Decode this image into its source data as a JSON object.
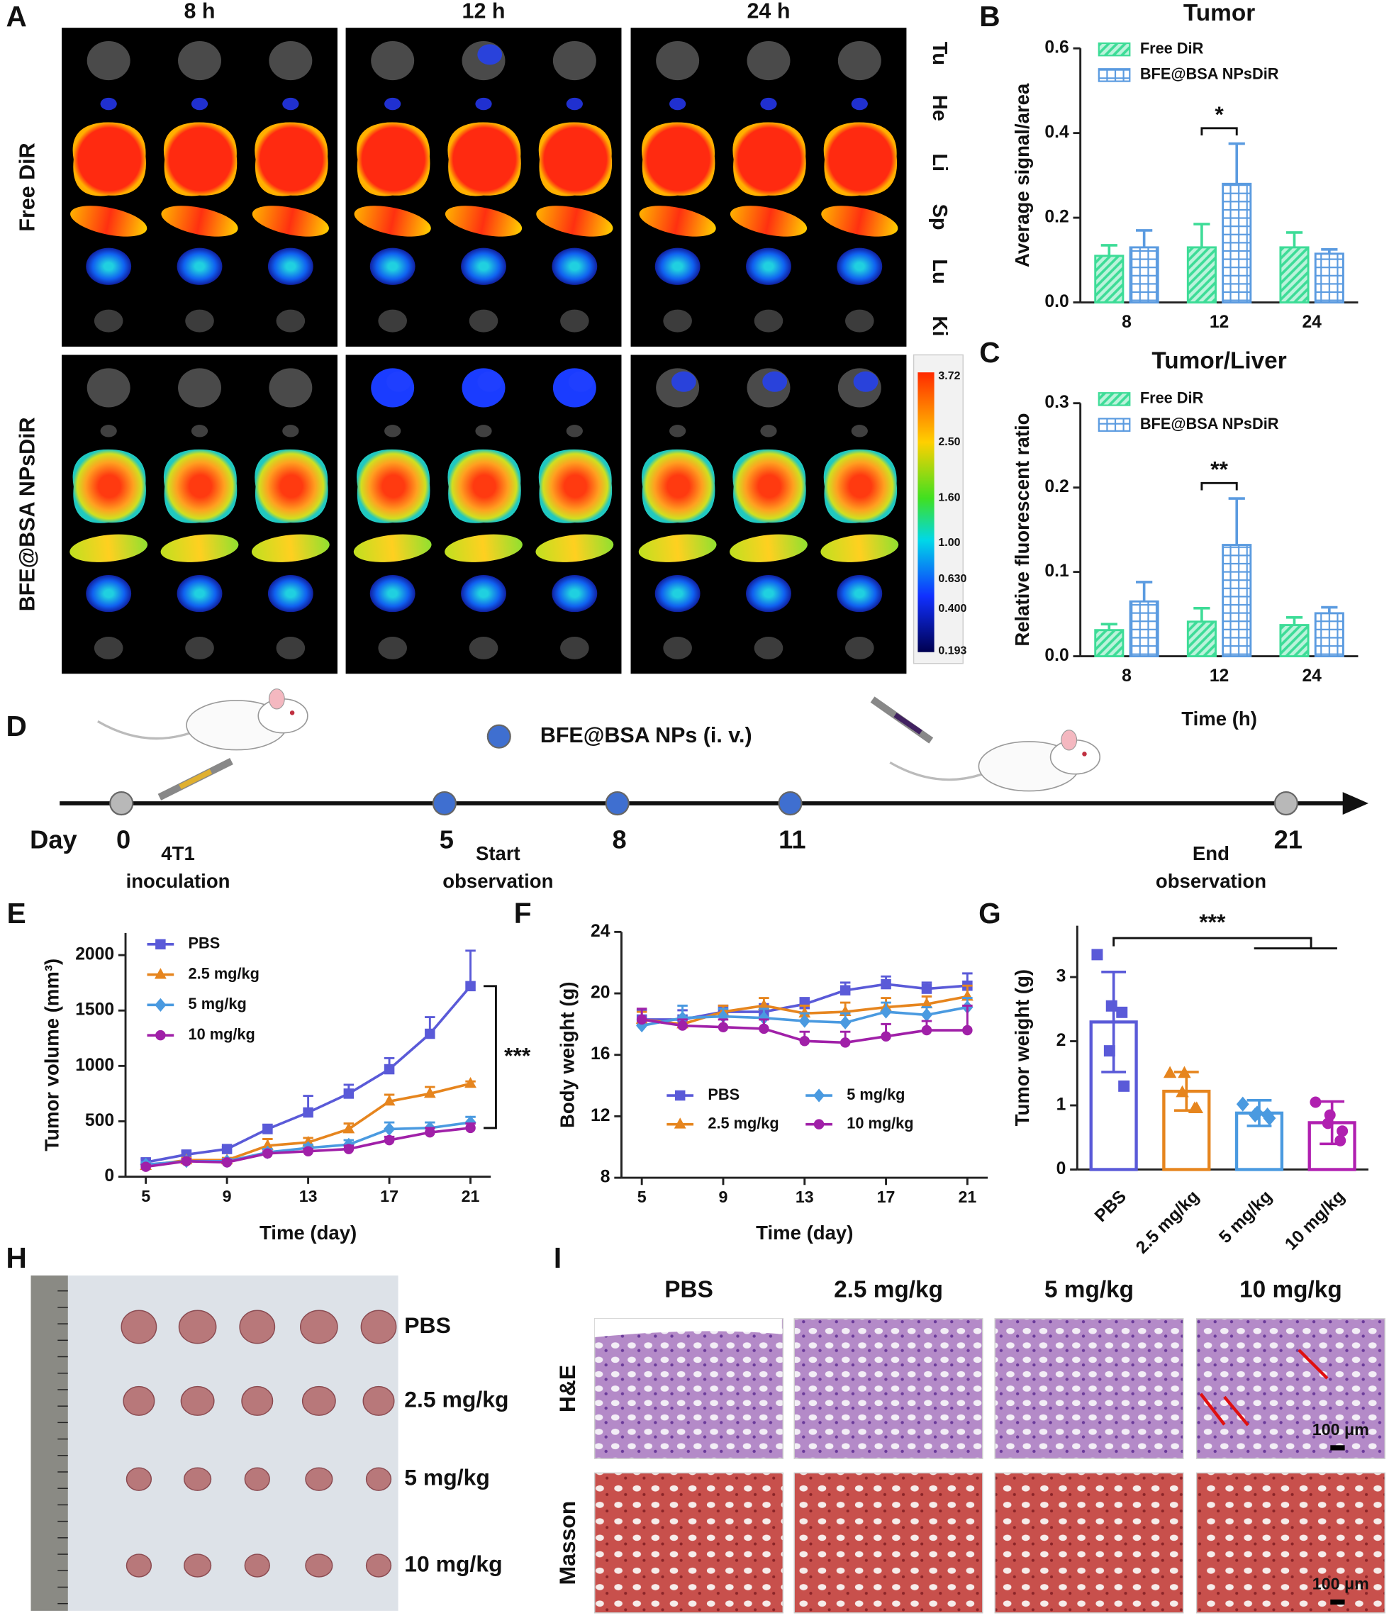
{
  "panel_labels": [
    "A",
    "B",
    "C",
    "D",
    "E",
    "F",
    "G",
    "H",
    "I"
  ],
  "panel_a": {
    "times": [
      "8 h",
      "12 h",
      "24 h"
    ],
    "groups": [
      "Free DiR",
      "BFE@BSA NPsDiR"
    ],
    "organs": [
      "Tu",
      "He",
      "Li",
      "Sp",
      "Lu",
      "Ki"
    ],
    "colorbar_labels": [
      "3.72",
      "2.50",
      "1.60",
      "1.00",
      "0.630",
      "0.400",
      "0.193"
    ]
  },
  "chart_data": [
    {
      "type": "bar",
      "title": "Tumor",
      "y_label": "Average signal/area",
      "categories": [
        "8",
        "12",
        "24"
      ],
      "series": [
        {
          "name": "Free DiR",
          "color": "#3ddc97",
          "pattern": "hatch",
          "values": [
            0.11,
            0.13,
            0.13
          ],
          "errors": [
            0.025,
            0.055,
            0.035
          ]
        },
        {
          "name": "BFE@BSA NPsDiR",
          "color": "#5b9be0",
          "pattern": "dots",
          "values": [
            0.13,
            0.28,
            0.115
          ],
          "errors": [
            0.04,
            0.095,
            0.01
          ]
        }
      ],
      "ylim": [
        0,
        0.6
      ],
      "yticks": [
        {
          "value": 0,
          "label": "0.0"
        },
        0.2,
        0.4,
        0.6
      ],
      "significance": "*",
      "legend": "upper left"
    },
    {
      "type": "bar",
      "title": "Tumor/Liver",
      "y_label": "Relative fluorescent ratio",
      "x_label": "Time (h)",
      "categories": [
        "8",
        "12",
        "24"
      ],
      "series": [
        {
          "name": "Free DiR",
          "color": "#3ddc97",
          "pattern": "hatch",
          "values": [
            0.031,
            0.041,
            0.037
          ],
          "errors": [
            0.007,
            0.016,
            0.009
          ]
        },
        {
          "name": "BFE@BSA NPsDiR",
          "color": "#5b9be0",
          "pattern": "dots",
          "values": [
            0.065,
            0.132,
            0.051
          ],
          "errors": [
            0.023,
            0.055,
            0.007
          ]
        }
      ],
      "ylim": [
        0,
        0.3
      ],
      "yticks": [
        {
          "value": 0,
          "label": "0.0"
        },
        0.1,
        0.2,
        0.3
      ],
      "significance": "**",
      "legend": "upper left"
    },
    {
      "type": "line",
      "y_label": "Tumor volume (mm³)",
      "x_label": "Time (day)",
      "x": [
        5,
        7,
        9,
        11,
        13,
        15,
        17,
        19,
        21
      ],
      "xlim": [
        4,
        22
      ],
      "xticks": [
        5,
        9,
        13,
        17,
        21
      ],
      "ylim": [
        0,
        2200
      ],
      "yticks": [
        0,
        500,
        1000,
        1500,
        2000
      ],
      "series": [
        {
          "name": "PBS",
          "color": "#5a5ad8",
          "marker": "square",
          "values": [
            130,
            200,
            250,
            430,
            580,
            750,
            970,
            1290,
            1720
          ],
          "errors": [
            30,
            30,
            20,
            40,
            150,
            80,
            100,
            150,
            320
          ]
        },
        {
          "name": "2.5 mg/kg",
          "color": "#e6851e",
          "marker": "triangle",
          "values": [
            100,
            150,
            150,
            280,
            310,
            430,
            680,
            750,
            840
          ],
          "errors": [
            20,
            20,
            20,
            60,
            40,
            50,
            60,
            60,
            20
          ]
        },
        {
          "name": "5 mg/kg",
          "color": "#4a9ae0",
          "marker": "diamond",
          "values": [
            110,
            140,
            140,
            220,
            260,
            290,
            430,
            440,
            490
          ],
          "errors": [
            20,
            20,
            20,
            30,
            30,
            40,
            60,
            50,
            50
          ]
        },
        {
          "name": "10 mg/kg",
          "color": "#a020a8",
          "marker": "circle",
          "values": [
            90,
            140,
            130,
            210,
            230,
            250,
            330,
            400,
            440
          ],
          "errors": [
            20,
            20,
            20,
            20,
            20,
            30,
            30,
            40,
            40
          ]
        }
      ],
      "significance": "***",
      "legend": "upper left",
      "legend_columns": 1
    },
    {
      "type": "line",
      "y_label": "Body weight (g)",
      "x_label": "Time (day)",
      "x": [
        5,
        7,
        9,
        11,
        13,
        15,
        17,
        19,
        21
      ],
      "xlim": [
        4,
        22
      ],
      "xticks": [
        5,
        9,
        13,
        17,
        21
      ],
      "ylim": [
        8,
        24
      ],
      "yticks": [
        8,
        12,
        16,
        20,
        24
      ],
      "series": [
        {
          "name": "PBS",
          "color": "#5a5ad8",
          "marker": "square",
          "values": [
            18.3,
            18.3,
            18.8,
            18.8,
            19.3,
            20.2,
            20.6,
            20.3,
            20.5
          ],
          "errors": [
            0.6,
            0.6,
            0.4,
            0.5,
            0.4,
            0.5,
            0.5,
            0.4,
            0.8
          ]
        },
        {
          "name": "2.5 mg/kg",
          "color": "#e6851e",
          "marker": "triangle",
          "values": [
            18.3,
            18.0,
            18.8,
            19.2,
            18.7,
            18.8,
            19.1,
            19.3,
            19.8
          ],
          "errors": [
            0.5,
            0.4,
            0.4,
            0.5,
            0.5,
            0.6,
            0.6,
            0.5,
            0.7
          ]
        },
        {
          "name": "5 mg/kg",
          "color": "#4a9ae0",
          "marker": "diamond",
          "values": [
            17.9,
            18.4,
            18.5,
            18.4,
            18.2,
            18.1,
            18.8,
            18.6,
            19.1
          ],
          "errors": [
            0.4,
            0.8,
            0.5,
            0.6,
            0.5,
            0.6,
            0.6,
            0.5,
            0.6
          ]
        },
        {
          "name": "10 mg/kg",
          "color": "#a020a8",
          "marker": "circle",
          "values": [
            18.3,
            17.9,
            17.8,
            17.7,
            16.9,
            16.8,
            17.2,
            17.6,
            17.6
          ],
          "errors": [
            0.7,
            0.4,
            0.5,
            0.6,
            0.6,
            0.7,
            0.8,
            0.6,
            1.6
          ]
        }
      ],
      "legend": "lower center",
      "legend_columns": 2
    },
    {
      "type": "bar_scatter",
      "y_label": "Tumor weight (g)",
      "categories": [
        "PBS",
        "2.5 mg/kg",
        "5 mg/kg",
        "10 mg/kg"
      ],
      "values": [
        2.3,
        1.22,
        0.88,
        0.73
      ],
      "errors": [
        0.78,
        0.3,
        0.2,
        0.33
      ],
      "colors": [
        "#5a5ad8",
        "#e6851e",
        "#4a9ae0",
        "#b020b0"
      ],
      "markers": [
        "square",
        "triangle",
        "diamond",
        "circle"
      ],
      "points": [
        [
          3.35,
          2.55,
          1.85,
          1.3,
          2.45
        ],
        [
          1.5,
          1.5,
          1.2,
          0.95,
          0.95
        ],
        [
          1.02,
          0.88,
          0.85,
          0.8,
          0.85
        ],
        [
          1.05,
          0.85,
          0.72,
          0.6,
          0.45
        ]
      ],
      "ylim": [
        0,
        3.8
      ],
      "yticks": [
        0,
        1,
        2,
        3
      ],
      "significance": "***"
    }
  ],
  "panel_d": {
    "legend": "BFE@BSA NPs (i. v.)",
    "axis_label": "Day",
    "days": [
      "0",
      "5",
      "8",
      "11",
      "21"
    ],
    "events": [
      [
        "4T1",
        "inoculation"
      ],
      [
        "Start",
        "observation"
      ],
      [
        "End",
        "observation"
      ]
    ]
  },
  "panel_h": {
    "groups": [
      "PBS",
      "2.5 mg/kg",
      "5 mg/kg",
      "10 mg/kg"
    ]
  },
  "panel_i": {
    "columns": [
      "PBS",
      "2.5 mg/kg",
      "5 mg/kg",
      "10 mg/kg"
    ],
    "rows": [
      "H&E",
      "Masson"
    ],
    "scale_bar": "100 μm"
  }
}
